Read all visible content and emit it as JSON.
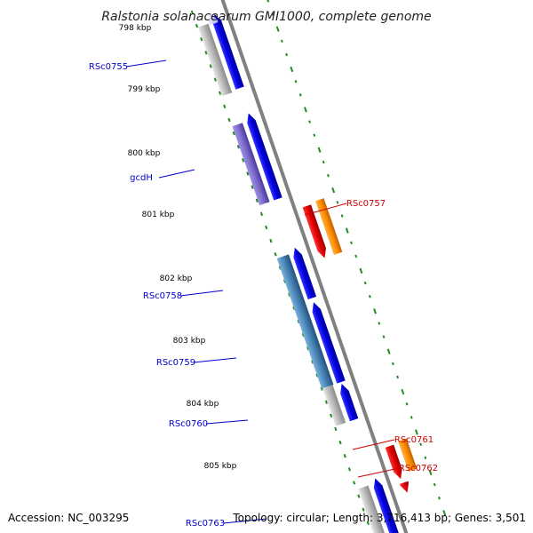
{
  "title": "Ralstonia solanacearum GMI1000, complete genome",
  "footer": {
    "accession": "Accession: NC_003295",
    "summary": "Topology: circular; Length: 3,716,413 bp; Genes: 3,501"
  },
  "ticks": [
    {
      "label": "798 kbp"
    },
    {
      "label": "799 kbp"
    },
    {
      "label": "800 kbp"
    },
    {
      "label": "801 kbp"
    },
    {
      "label": "802 kbp"
    },
    {
      "label": "803 kbp"
    },
    {
      "label": "804 kbp"
    },
    {
      "label": "805 kbp"
    }
  ],
  "genes_left": [
    {
      "name": "RSc0755",
      "color": "#0000cc"
    },
    {
      "name": "gcdH",
      "color": "#0000cc"
    },
    {
      "name": "RSc0758",
      "color": "#0000cc"
    },
    {
      "name": "RSc0759",
      "color": "#0000cc"
    },
    {
      "name": "RSc0760",
      "color": "#0000cc"
    },
    {
      "name": "RSc0763",
      "color": "#0000cc"
    }
  ],
  "genes_right": [
    {
      "name": "RSc0757",
      "color": "#cc0000"
    },
    {
      "name": "RSc0761",
      "color": "#cc0000"
    },
    {
      "name": "RSc0762",
      "color": "#cc0000"
    }
  ],
  "colors": {
    "forward_cds": "#0000ee",
    "reverse_cds": "#ee0000",
    "orange_feature": "#ff8c00",
    "backbone": "#808080",
    "gc_skew": "#228b22",
    "grey_feature": "#b0b0b0",
    "purple_feature": "#7b68c8",
    "steelblue_feature": "#4682b4"
  }
}
